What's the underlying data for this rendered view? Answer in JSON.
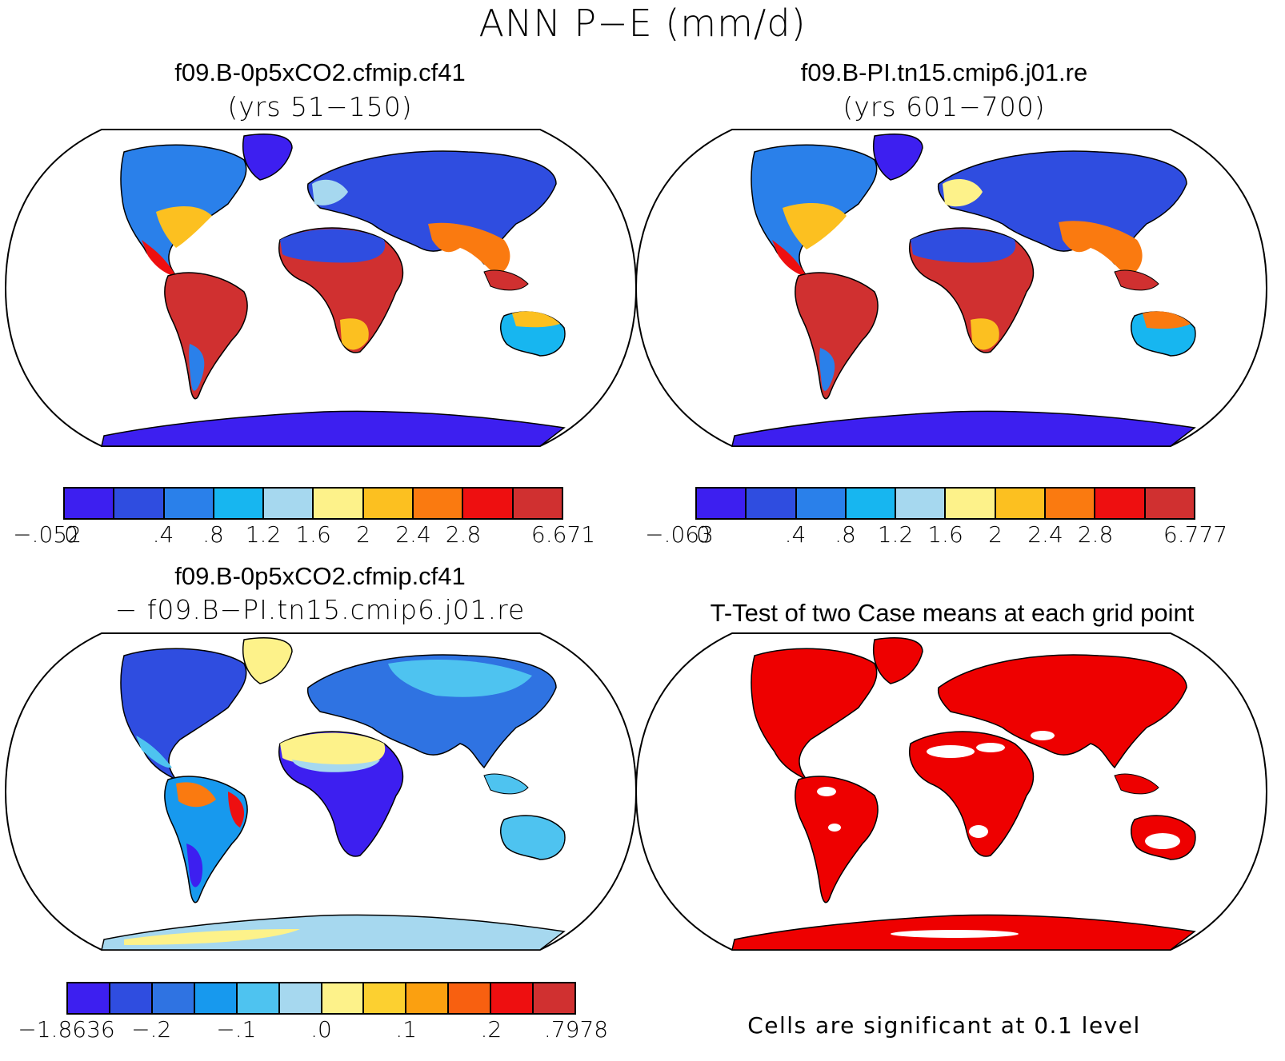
{
  "figure": {
    "title": "ANN P−E (mm/d)"
  },
  "panels": [
    {
      "id": "case1",
      "title": "f09.B-0p5xCO2.cfmip.cf41",
      "subtitle": "(yrs 51−150)",
      "colorbar": {
        "colors": [
          "#3d1ff0",
          "#2f4de0",
          "#2a80ea",
          "#17b6f0",
          "#a6d8ef",
          "#fdf28a",
          "#fcc020",
          "#fa7a10",
          "#ee0f10",
          "#d03030"
        ],
        "labels": [
          "−.052",
          "0",
          ".4",
          ".8",
          "1.2",
          "1.6",
          "2",
          "2.4",
          "2.8",
          "6.671"
        ]
      }
    },
    {
      "id": "case2",
      "title": "f09.B-PI.tn15.cmip6.j01.re",
      "subtitle": "(yrs 601−700)",
      "colorbar": {
        "colors": [
          "#3d1ff0",
          "#2f4de0",
          "#2a80ea",
          "#17b6f0",
          "#a6d8ef",
          "#fdf28a",
          "#fcc020",
          "#fa7a10",
          "#ee0f10",
          "#d03030"
        ],
        "labels": [
          "−.063",
          "0",
          ".4",
          ".8",
          "1.2",
          "1.6",
          "2",
          "2.4",
          "2.8",
          "6.777"
        ]
      }
    },
    {
      "id": "difference",
      "title": "f09.B-0p5xCO2.cfmip.cf41",
      "subtitle": "− f09.B−PI.tn15.cmip6.j01.re",
      "colorbar": {
        "colors": [
          "#3d1ff0",
          "#2f4de0",
          "#2f73e2",
          "#1799ee",
          "#4ec3f0",
          "#a6d8ef",
          "#fdf28a",
          "#fcd030",
          "#fba010",
          "#f86010",
          "#ee0f10",
          "#d03030"
        ],
        "labels": [
          "−1.8636",
          "−.2",
          "−.1",
          ".0",
          ".1",
          ".2",
          ".7978"
        ]
      }
    },
    {
      "id": "ttest",
      "title": "T-Test of two Case means at each grid point",
      "note": "Cells are significant at 0.1 level",
      "fill_color": "#ee0000"
    }
  ],
  "map": {
    "projection": "Robinson",
    "ocean_color": "#ffffff",
    "coastline_color": "#000000"
  }
}
